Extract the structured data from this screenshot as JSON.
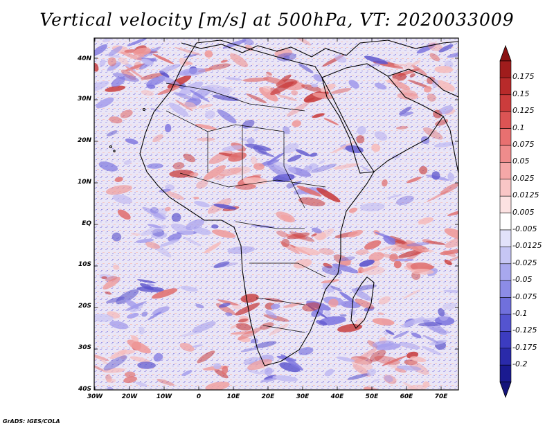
{
  "title": "Vertical velocity [m/s] at 500hPa, VT: 2020033009",
  "credit": "GrADS: IGES/COLA",
  "map": {
    "variable": "Vertical velocity",
    "units": "m/s",
    "level": "500hPa",
    "valid_time": "2020033009",
    "region": "Africa",
    "lon_range": [
      -30,
      75
    ],
    "lat_range": [
      -40,
      45
    ],
    "lat_labels": [
      "40N",
      "30N",
      "20N",
      "10N",
      "EQ",
      "10S",
      "20S",
      "30S",
      "40S"
    ],
    "lon_labels": [
      "30W",
      "20W",
      "10W",
      "0",
      "10E",
      "20E",
      "30E",
      "40E",
      "50E",
      "60E",
      "70E"
    ]
  },
  "colorbar": {
    "labels": [
      "0.175",
      "0.15",
      "0.125",
      "0.1",
      "0.075",
      "0.05",
      "0.025",
      "0.0125",
      "0.005",
      "-0.005",
      "-0.0125",
      "-0.025",
      "-0.05",
      "-0.075",
      "-0.1",
      "-0.125",
      "-0.175",
      "-0.2"
    ],
    "colors": [
      "#a01c1c",
      "#b82a2a",
      "#cc3c3c",
      "#dc5454",
      "#e87070",
      "#ef8c8c",
      "#f5a8a8",
      "#f9c6c6",
      "#fce2e2",
      "#ffffff",
      "#e2e2fa",
      "#c6c6f4",
      "#a8a8ee",
      "#8c8ce6",
      "#7070dc",
      "#5454d0",
      "#3c3cc0",
      "#2a2aaa",
      "#1a1a90"
    ],
    "top_arrow_color": "#8a1010",
    "bottom_arrow_color": "#14147a"
  },
  "colors": {
    "positive": "#e05050",
    "negative": "#5858e0",
    "coastline": "#000000"
  }
}
